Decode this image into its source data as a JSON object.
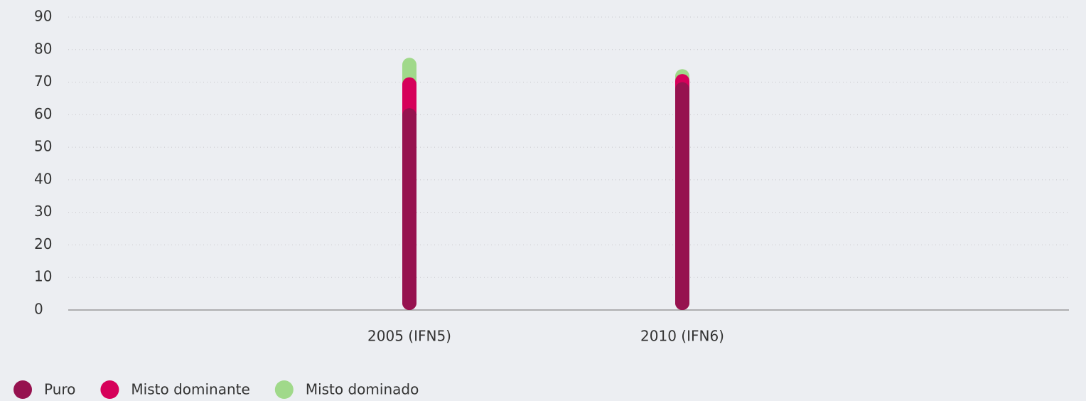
{
  "chart_data": {
    "type": "stacked_bar",
    "categories": [
      "2005 (IFN5)",
      "2010 (IFN6)"
    ],
    "series": [
      {
        "name": "Puro",
        "color": "#96124f",
        "values": [
          62,
          70
        ]
      },
      {
        "name": "Misto dominante",
        "color": "#d6005a",
        "values": [
          9.5,
          2.5
        ]
      },
      {
        "name": "Misto dominado",
        "color": "#a0d98a",
        "values": [
          6,
          1.5
        ]
      }
    ],
    "ylim": [
      0,
      90
    ],
    "yticks": [
      0,
      10,
      20,
      30,
      40,
      50,
      60,
      70,
      80,
      90
    ],
    "grid": true,
    "legend": "bottom-left"
  }
}
